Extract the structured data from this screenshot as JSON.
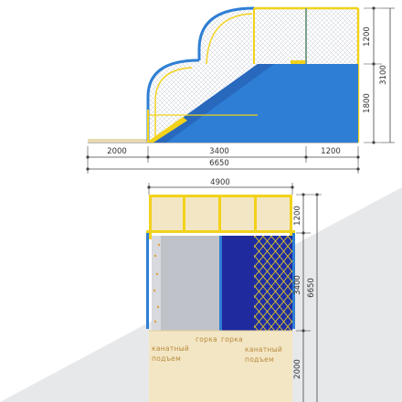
{
  "side_view": {
    "dims_horizontal": [
      "2000",
      "3400",
      "1200",
      "6650"
    ],
    "dims_vertical": [
      "1200",
      "1800",
      "3100"
    ]
  },
  "plan_view": {
    "dims_horizontal": [
      "4900"
    ],
    "dims_vertical": [
      "1200",
      "3400",
      "2000",
      "6650"
    ],
    "labels": {
      "rope_climb_left": [
        "канатный",
        "подъем"
      ],
      "slide_left": "горка",
      "slide_right": "горка",
      "rope_climb_right": [
        "канатный",
        "подъем"
      ]
    }
  },
  "colors": {
    "frame_yellow": "#f2d21a",
    "frame_blue": "#2f7fd4",
    "slide_blue": "#2e7ed6",
    "dark_blue": "#1e2a9e",
    "panel_beige": "#f3e6c4",
    "wall_grey": "#bfc2c8",
    "background_grey": "#e7e8ea"
  }
}
